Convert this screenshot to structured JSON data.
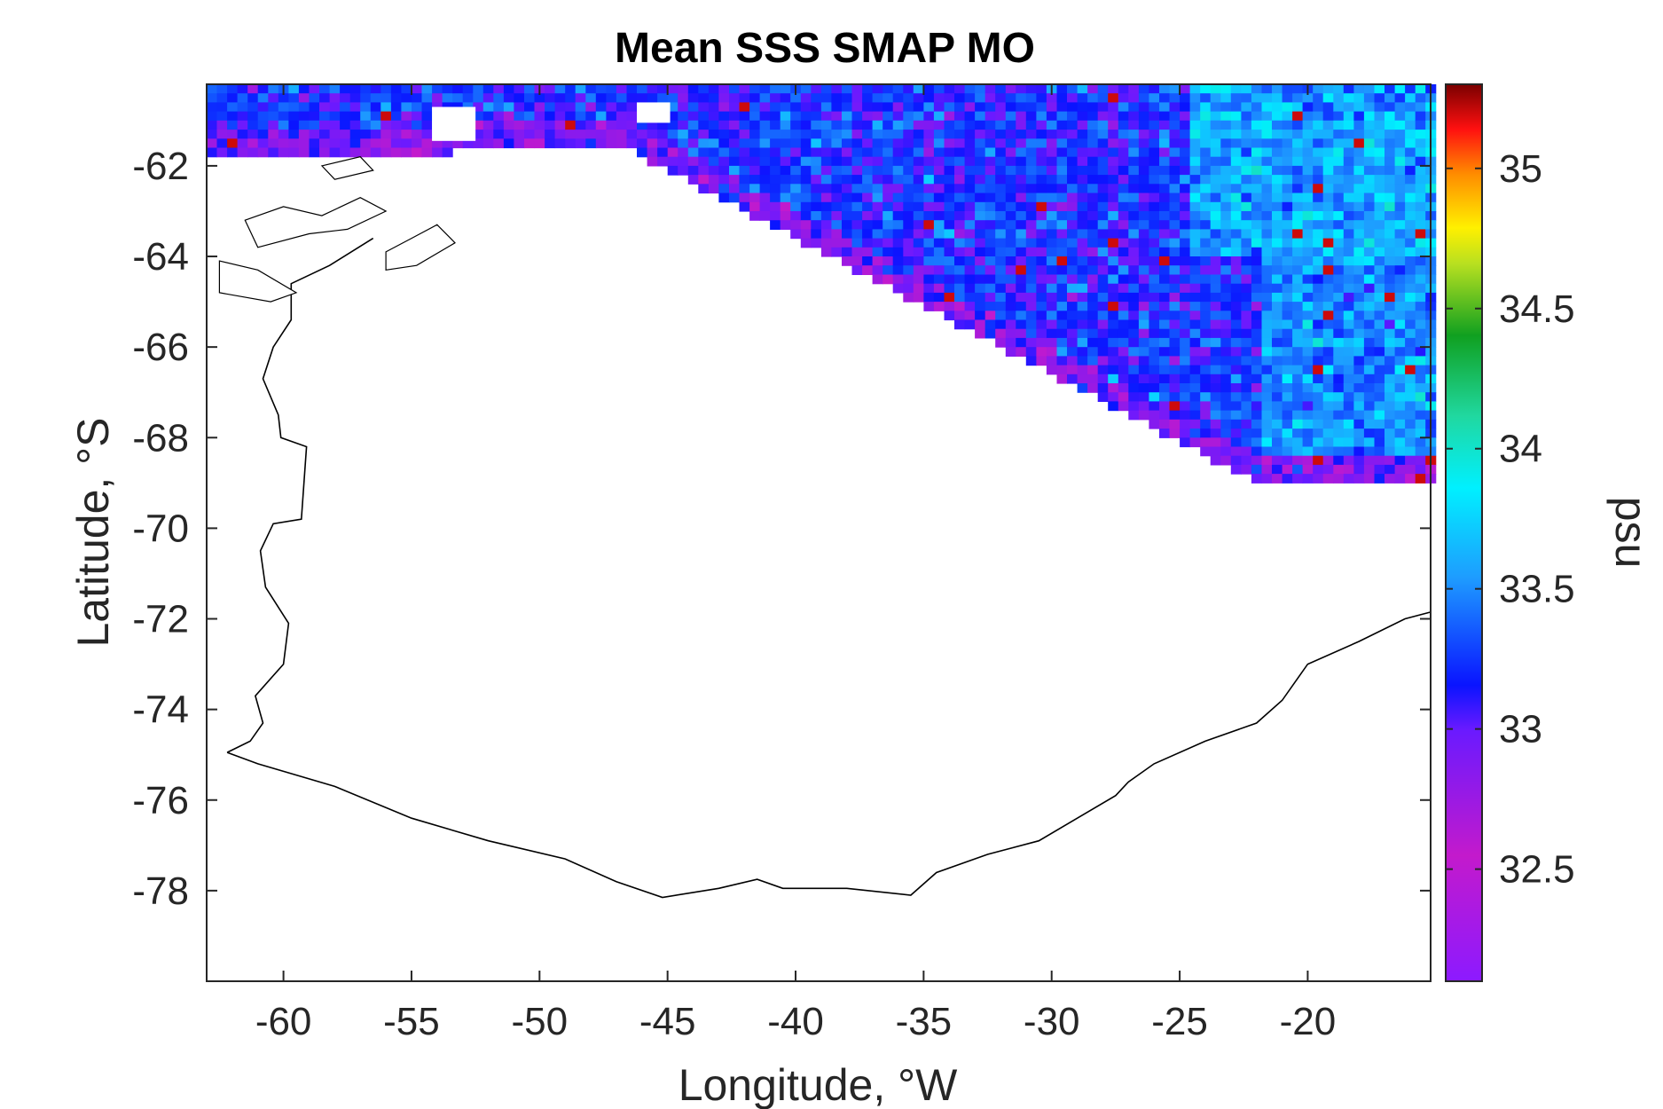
{
  "chart_data": {
    "type": "heatmap",
    "title": "Mean SSS SMAP MO",
    "xlabel": "Longitude, °W",
    "ylabel": "Latitude, °S",
    "xlim": [
      -63,
      -15.2
    ],
    "ylim": [
      -80,
      -60.2
    ],
    "xticks": [
      -60,
      -55,
      -50,
      -45,
      -40,
      -35,
      -30,
      -25,
      -20
    ],
    "xtick_labels": [
      "-60",
      "-55",
      "-50",
      "-45",
      "-40",
      "-35",
      "-30",
      "-25",
      "-20"
    ],
    "yticks": [
      -62,
      -64,
      -66,
      -68,
      -70,
      -72,
      -74,
      -76,
      -78
    ],
    "ytick_labels": [
      "-62",
      "-64",
      "-66",
      "-68",
      "-70",
      "-72",
      "-74",
      "-76",
      "-78"
    ],
    "colorbar": {
      "label": "psu",
      "range": [
        32.1,
        35.3
      ],
      "ticks": [
        32.5,
        33,
        33.5,
        34,
        34.5,
        35
      ],
      "tick_labels": [
        "32.5",
        "33",
        "33.5",
        "34",
        "34.5",
        "35"
      ],
      "colormap": "jet-like (purple–blue–cyan–green–yellow–red–dark red)"
    },
    "grid": false,
    "field_description_values": {
      "typical_range": [
        32.5,
        33.8
      ],
      "northeast_region_mean": 33.7,
      "central_band_mean": 33.2,
      "southern_edge_mean": 32.8
    },
    "coastline": true
  },
  "colors": {
    "axis": "#262626",
    "coastline": "#000000",
    "background": "#ffffff"
  }
}
